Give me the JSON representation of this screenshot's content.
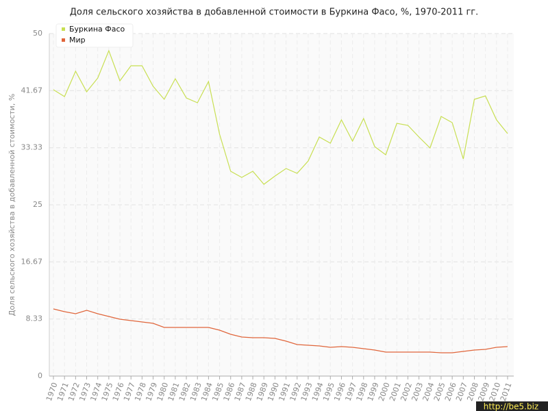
{
  "chart_data": {
    "type": "line",
    "title": "Доля сельского хозяйства в добавленной стоимости в Буркина Фасо, %, 1970-2011 гг.",
    "y_label": "Доля сельского хозяйства в добавленной стоимости, %",
    "watermark": "http://be5.biz",
    "categories": [
      "1970",
      "1971",
      "1972",
      "1973",
      "1974",
      "1975",
      "1976",
      "1977",
      "1978",
      "1979",
      "1980",
      "1981",
      "1982",
      "1983",
      "1984",
      "1985",
      "1986",
      "1987",
      "1988",
      "1989",
      "1990",
      "1991",
      "1992",
      "1993",
      "1994",
      "1995",
      "1996",
      "1997",
      "1998",
      "1999",
      "2000",
      "2001",
      "2002",
      "2003",
      "2004",
      "2005",
      "2006",
      "2007",
      "2008",
      "2009",
      "2010",
      "2011"
    ],
    "series": [
      {
        "name": "Буркина Фасо",
        "color": "#c8df52",
        "values": [
          41.8,
          40.8,
          44.5,
          41.5,
          43.5,
          47.5,
          43.1,
          45.3,
          45.3,
          42.3,
          40.4,
          43.4,
          40.6,
          39.9,
          43.0,
          35.3,
          29.9,
          29.0,
          29.9,
          28.0,
          29.2,
          30.3,
          29.6,
          31.4,
          34.9,
          34.0,
          37.4,
          34.3,
          37.6,
          33.5,
          32.3,
          36.9,
          36.6,
          34.9,
          33.3,
          37.9,
          37.0,
          31.7,
          40.4,
          40.9,
          37.4,
          35.4
        ]
      },
      {
        "name": "Мир",
        "color": "#e0653a",
        "values": [
          9.8,
          9.4,
          9.1,
          9.6,
          9.1,
          8.7,
          8.3,
          8.1,
          7.9,
          7.7,
          7.1,
          7.1,
          7.1,
          7.1,
          7.1,
          6.7,
          6.1,
          5.7,
          5.6,
          5.6,
          5.5,
          5.1,
          4.6,
          4.5,
          4.4,
          4.2,
          4.3,
          4.2,
          4.0,
          3.8,
          3.5,
          3.5,
          3.5,
          3.5,
          3.5,
          3.4,
          3.4,
          3.6,
          3.8,
          3.9,
          4.2,
          4.3
        ]
      }
    ],
    "ylim": [
      0,
      50
    ],
    "yticks": [
      0,
      8.33,
      16.67,
      25,
      33.33,
      41.67,
      50
    ],
    "grid": true,
    "legend": "top-left"
  }
}
